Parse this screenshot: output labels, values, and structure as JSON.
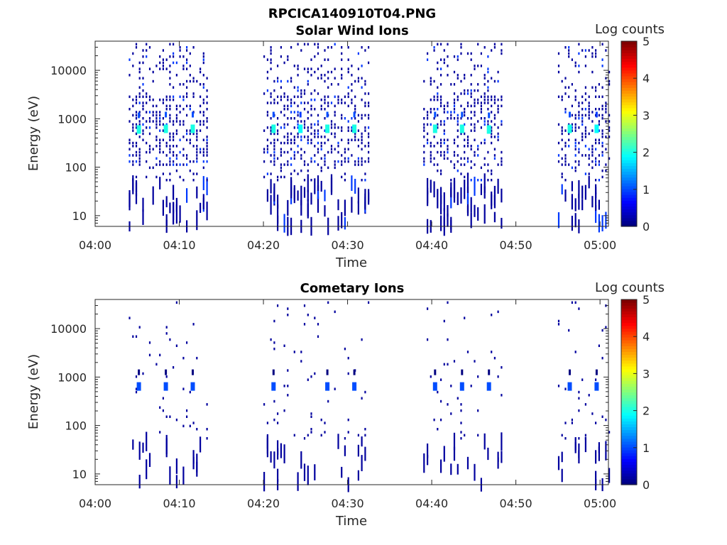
{
  "figure_title": "RPCICA140910T04.PNG",
  "colorbar": {
    "label": "Log counts",
    "ticks": [
      "0",
      "1",
      "2",
      "3",
      "4",
      "5"
    ],
    "colormap": "jet"
  },
  "chart_data": [
    {
      "type": "heatmap",
      "title": "Solar Wind Ions",
      "xlabel": "Time",
      "ylabel": "Energy (eV)",
      "x_range": [
        "04:00",
        "05:01"
      ],
      "x_ticks": [
        "04:00",
        "04:10",
        "04:20",
        "04:30",
        "04:40",
        "04:50",
        "05:00"
      ],
      "y_scale": "log",
      "ylim": [
        6,
        40000
      ],
      "y_ticks": [
        {
          "value": 10,
          "label": "10"
        },
        {
          "value": 100,
          "label": "100"
        },
        {
          "value": 1000,
          "label": "1000"
        },
        {
          "value": 10000,
          "label": "10000"
        }
      ],
      "clim": [
        0,
        5
      ],
      "activity_windows": [
        [
          "04:04",
          "04:13.5"
        ],
        [
          "04:20",
          "04:32.5"
        ],
        [
          "04:39",
          "04:48.5"
        ],
        [
          "04:55",
          "05:01"
        ]
      ],
      "hotspots": [
        {
          "time": "04:05.2",
          "energy_eV": 600,
          "log_counts": 2.0
        },
        {
          "time": "04:08.4",
          "energy_eV": 620,
          "log_counts": 2.0
        },
        {
          "time": "04:11.6",
          "energy_eV": 620,
          "log_counts": 2.0
        },
        {
          "time": "04:21.2",
          "energy_eV": 620,
          "log_counts": 2.0
        },
        {
          "time": "04:24.4",
          "energy_eV": 620,
          "log_counts": 1.9
        },
        {
          "time": "04:27.6",
          "energy_eV": 620,
          "log_counts": 2.0
        },
        {
          "time": "04:30.8",
          "energy_eV": 620,
          "log_counts": 2.0
        },
        {
          "time": "04:40.4",
          "energy_eV": 620,
          "log_counts": 2.0
        },
        {
          "time": "04:43.6",
          "energy_eV": 620,
          "log_counts": 2.0
        },
        {
          "time": "04:46.8",
          "energy_eV": 600,
          "log_counts": 2.0
        },
        {
          "time": "04:56.4",
          "energy_eV": 620,
          "log_counts": 2.0
        },
        {
          "time": "04:59.6",
          "energy_eV": 620,
          "log_counts": 1.9
        }
      ]
    },
    {
      "type": "heatmap",
      "title": "Cometary Ions",
      "xlabel": "Time",
      "ylabel": "Energy (eV)",
      "x_range": [
        "04:00",
        "05:01"
      ],
      "x_ticks": [
        "04:00",
        "04:10",
        "04:20",
        "04:30",
        "04:40",
        "04:50",
        "05:00"
      ],
      "y_scale": "log",
      "ylim": [
        6,
        40000
      ],
      "y_ticks": [
        {
          "value": 10,
          "label": "10"
        },
        {
          "value": 100,
          "label": "100"
        },
        {
          "value": 1000,
          "label": "1000"
        },
        {
          "value": 10000,
          "label": "10000"
        }
      ],
      "clim": [
        0,
        5
      ],
      "activity_windows": [
        [
          "04:04",
          "04:13.5"
        ],
        [
          "04:20",
          "04:32.5"
        ],
        [
          "04:39",
          "04:48.5"
        ],
        [
          "04:55",
          "05:01"
        ]
      ],
      "hotspots": [
        {
          "time": "04:05.2",
          "energy_eV": 640,
          "log_counts": 1.0
        },
        {
          "time": "04:08.4",
          "energy_eV": 640,
          "log_counts": 1.0
        },
        {
          "time": "04:11.6",
          "energy_eV": 640,
          "log_counts": 1.0
        },
        {
          "time": "04:21.2",
          "energy_eV": 640,
          "log_counts": 1.0
        },
        {
          "time": "04:27.6",
          "energy_eV": 640,
          "log_counts": 1.0
        },
        {
          "time": "04:30.8",
          "energy_eV": 640,
          "log_counts": 1.0
        },
        {
          "time": "04:40.4",
          "energy_eV": 640,
          "log_counts": 1.0
        },
        {
          "time": "04:43.6",
          "energy_eV": 640,
          "log_counts": 1.0
        },
        {
          "time": "04:46.8",
          "energy_eV": 640,
          "log_counts": 1.0
        },
        {
          "time": "04:56.4",
          "energy_eV": 640,
          "log_counts": 1.0
        },
        {
          "time": "04:59.6",
          "energy_eV": 640,
          "log_counts": 1.0
        }
      ]
    }
  ]
}
